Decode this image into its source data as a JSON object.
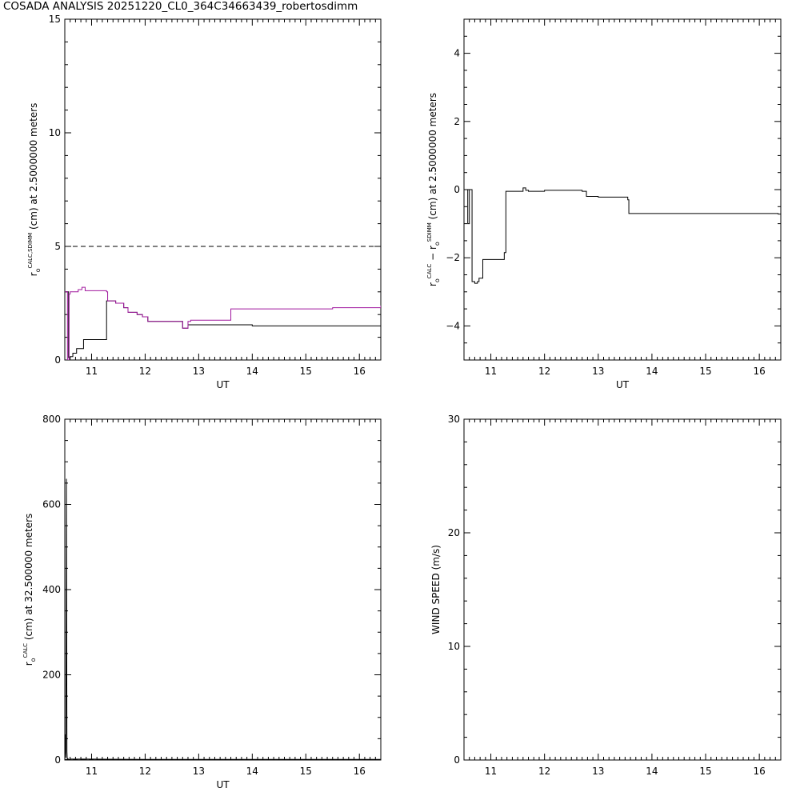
{
  "title": "COSADA ANALYSIS 20251220_CL0_364C34663439_robertosdimm",
  "colors": {
    "calc": "#000000",
    "sdimm": "#a0189e",
    "axis": "#000000"
  },
  "chart_data": [
    {
      "type": "line",
      "xlabel": "UT",
      "ylabel": {
        "main": "r",
        "sub": "o",
        "sup": "CALC,SDIMM",
        "rest": "(cm)  at  2.5000000 meters"
      },
      "xlim": [
        10.5,
        16.4
      ],
      "ylim": [
        0,
        15
      ],
      "xticks": [
        11,
        12,
        13,
        14,
        15,
        16
      ],
      "yticks": [
        0,
        5,
        10,
        15
      ],
      "xtick_labels": [
        "11",
        "12",
        "13",
        "14",
        "15",
        "16"
      ],
      "ytick_labels": [
        "0",
        "5",
        "10",
        "15"
      ],
      "reference_line": {
        "y": 5,
        "style": "dashed"
      },
      "series": [
        {
          "color": "#000000",
          "step": true,
          "x": [
            10.5,
            10.57,
            10.6,
            10.65,
            10.72,
            10.78,
            10.85,
            11.28,
            11.45,
            11.6,
            11.68,
            11.85,
            11.95,
            12.05,
            12.7,
            12.8,
            13.0,
            13.6,
            14.0,
            15.0,
            16.35,
            16.4
          ],
          "y": [
            3.0,
            0.1,
            0.15,
            0.3,
            0.5,
            0.5,
            0.9,
            2.6,
            2.5,
            2.3,
            2.1,
            2.0,
            1.9,
            1.7,
            1.4,
            1.55,
            1.55,
            1.55,
            1.5,
            1.5,
            1.5,
            1.7
          ]
        },
        {
          "color": "#a0189e",
          "step": true,
          "x": [
            10.5,
            10.55,
            10.58,
            10.6,
            10.75,
            10.82,
            10.88,
            11.28,
            11.3,
            11.45,
            11.6,
            11.68,
            11.85,
            11.95,
            12.05,
            12.7,
            12.8,
            12.85,
            13.6,
            14.5,
            15.5,
            16.35,
            16.4
          ],
          "y": [
            3.0,
            0.0,
            2.9,
            3.0,
            3.1,
            3.2,
            3.05,
            3.0,
            2.6,
            2.5,
            2.3,
            2.1,
            2.0,
            1.9,
            1.7,
            1.4,
            1.7,
            1.75,
            2.25,
            2.25,
            2.3,
            2.3,
            2.4
          ]
        }
      ]
    },
    {
      "type": "line",
      "xlabel": "UT",
      "ylabel": {
        "main": "r",
        "sub": "o",
        "sup": "CALC",
        "mid": "  −  r",
        "sub2": "o",
        "sup2": "SDIMM",
        "rest": " (cm)  at  2.5000000 meters"
      },
      "xlim": [
        10.5,
        16.4
      ],
      "ylim": [
        -5,
        5
      ],
      "xticks": [
        11,
        12,
        13,
        14,
        15,
        16
      ],
      "yticks": [
        -4,
        -2,
        0,
        2,
        4
      ],
      "xtick_labels": [
        "11",
        "12",
        "13",
        "14",
        "15",
        "16"
      ],
      "ytick_labels": [
        "−4",
        "−2",
        "0",
        "2",
        "4"
      ],
      "series": [
        {
          "color": "#000000",
          "step": true,
          "x": [
            10.55,
            10.57,
            10.6,
            10.65,
            10.7,
            10.75,
            10.78,
            10.85,
            11.25,
            11.28,
            11.55,
            11.6,
            11.65,
            11.7,
            12.0,
            12.7,
            12.78,
            13.0,
            13.55,
            13.57,
            15.0,
            16.35,
            16.4
          ],
          "y": [
            0.0,
            -1.0,
            0.0,
            -2.7,
            -2.75,
            -2.7,
            -2.6,
            -2.05,
            -1.85,
            -0.05,
            -0.05,
            0.05,
            -0.02,
            -0.05,
            -0.02,
            -0.05,
            -0.2,
            -0.22,
            -0.3,
            -0.7,
            -0.7,
            -0.72,
            -0.8
          ]
        }
      ]
    },
    {
      "type": "line",
      "xlabel": "UT",
      "ylabel": {
        "main": "r",
        "sub": "o",
        "sup": "CALC",
        "rest": "(cm)  at  32.500000 meters"
      },
      "xlim": [
        10.5,
        16.4
      ],
      "ylim": [
        0,
        800
      ],
      "xticks": [
        11,
        12,
        13,
        14,
        15,
        16
      ],
      "yticks": [
        0,
        200,
        400,
        600,
        800
      ],
      "xtick_labels": [
        "11",
        "12",
        "13",
        "14",
        "15",
        "16"
      ],
      "ytick_labels": [
        "0",
        "200",
        "400",
        "600",
        "800"
      ],
      "reference_line": {
        "y": 1,
        "style": "dashed"
      },
      "series": [
        {
          "color": "#000000",
          "step": false,
          "x": [
            10.5,
            10.51,
            10.52,
            10.53,
            10.54,
            10.545,
            10.55,
            10.56,
            10.57,
            10.6,
            11.0,
            12.0,
            13.0,
            14.0,
            15.0,
            16.0,
            16.4
          ],
          "y": [
            0,
            60,
            5,
            660,
            20,
            5,
            0,
            3,
            1,
            2,
            2,
            1.5,
            1.5,
            1.5,
            1.5,
            1.5,
            1.5
          ]
        }
      ]
    },
    {
      "type": "line",
      "xlabel": "",
      "ylabel": {
        "main": "WIND SPEED  (m/s)"
      },
      "xlim": [
        10.5,
        16.4
      ],
      "ylim": [
        0,
        30
      ],
      "xticks": [
        11,
        12,
        13,
        14,
        15,
        16
      ],
      "yticks": [
        0,
        10,
        20,
        30
      ],
      "xtick_labels": [
        "11",
        "12",
        "13",
        "14",
        "15",
        "16"
      ],
      "ytick_labels": [
        "0",
        "10",
        "20",
        "30"
      ],
      "series": []
    }
  ]
}
